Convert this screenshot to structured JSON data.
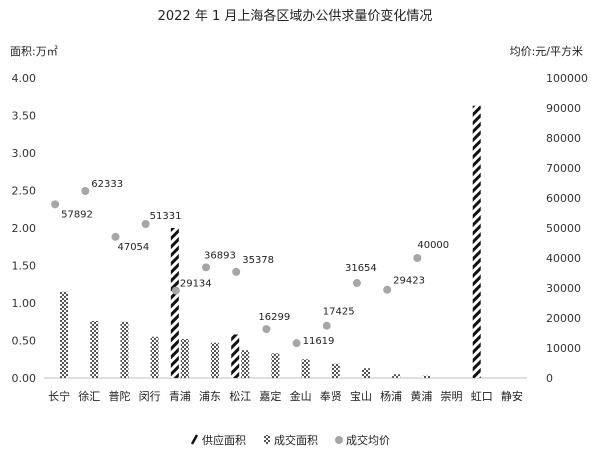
{
  "chart_data": {
    "type": "bar",
    "title": "2022 年 1 月上海各区域办公供求量价变化情况",
    "ylabel_left": "面积:万㎡",
    "ylabel_right": "均价:元/平方米",
    "ylim_left": [
      0,
      4.0
    ],
    "ylim_right": [
      0,
      100000
    ],
    "yticks_left": [
      "0.00",
      "0.50",
      "1.00",
      "1.50",
      "2.00",
      "2.50",
      "3.00",
      "3.50",
      "4.00"
    ],
    "yticks_right": [
      "0",
      "10000",
      "20000",
      "30000",
      "40000",
      "50000",
      "60000",
      "70000",
      "80000",
      "90000",
      "100000"
    ],
    "grid": false,
    "legend_position": "bottom",
    "categories": [
      "长宁",
      "徐汇",
      "普陀",
      "闵行",
      "青浦",
      "浦东",
      "松江",
      "嘉定",
      "金山",
      "奉贤",
      "宝山",
      "杨浦",
      "黄浦",
      "崇明",
      "虹口",
      "静安"
    ],
    "series": [
      {
        "name": "供应面积",
        "type": "bar",
        "axis": "left",
        "color": "#111111",
        "pattern": "diagonal-stripes",
        "values": [
          0,
          0,
          0,
          0,
          2.0,
          0,
          0.58,
          0,
          0,
          0,
          0,
          0,
          0,
          0,
          3.63,
          0
        ]
      },
      {
        "name": "成交面积",
        "type": "bar",
        "axis": "left",
        "color": "#555555",
        "pattern": "checker",
        "values": [
          1.15,
          0.76,
          0.75,
          0.55,
          0.52,
          0.47,
          0.37,
          0.33,
          0.25,
          0.19,
          0.13,
          0.05,
          0.03,
          0,
          0,
          0
        ]
      },
      {
        "name": "成交均价",
        "type": "scatter",
        "axis": "right",
        "color": "#a6a6a6",
        "values": [
          57892,
          62333,
          47054,
          51331,
          29134,
          36893,
          35378,
          16299,
          11619,
          17425,
          31654,
          29423,
          40000,
          null,
          null,
          null
        ],
        "labels": [
          "57892",
          "62333",
          "47054",
          "51331",
          "29134",
          "36893",
          "35378",
          "16299",
          "11619",
          "17425",
          "31654",
          "29423",
          "40000",
          "",
          "",
          ""
        ]
      }
    ]
  }
}
